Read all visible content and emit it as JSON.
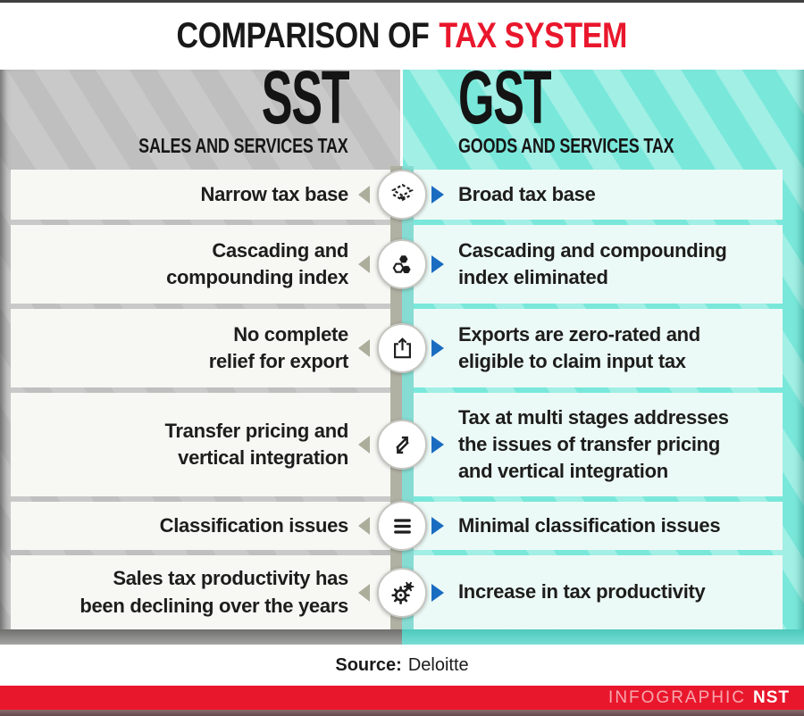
{
  "title": {
    "prefix": "COMPARISON OF",
    "highlight": "TAX SYSTEM"
  },
  "columns": {
    "left": {
      "abbr": "SST",
      "name": "SALES AND SERVICES TAX"
    },
    "right": {
      "abbr": "GST",
      "name": "GOODS AND SERVICES TAX"
    }
  },
  "rows": [
    {
      "icon": "layers-icon",
      "left": "Narrow tax base",
      "right": "Broad tax base"
    },
    {
      "icon": "hexagons-icon",
      "left": "Cascading and\ncompounding index",
      "right": "Cascading and compounding\nindex eliminated"
    },
    {
      "icon": "export-icon",
      "left": "No complete\nrelief for export",
      "right": "Exports are zero-rated and\neligible to claim input tax"
    },
    {
      "icon": "transfer-arrows-icon",
      "left": "Transfer pricing and\nvertical integration",
      "right": "Tax at multi stages addresses\nthe issues of transfer pricing\nand vertical integration"
    },
    {
      "icon": "list-lines-icon",
      "left": "Classification issues",
      "right": "Minimal classification issues"
    },
    {
      "icon": "gears-icon",
      "left": "Sales tax productivity has\nbeen declining over the years",
      "right": "Increase in tax productivity"
    }
  ],
  "source": {
    "label": "Source:",
    "value": "Deloitte"
  },
  "footer": {
    "brand_light": "INFOGRAPHIC",
    "brand_bold": "NST"
  },
  "icons": {
    "left-arrow-icon": "olive-gray triangle pointing left",
    "right-arrow-icon": "blue triangle pointing right",
    "layers-icon": "two stacked dashed diamond layers",
    "hexagons-icon": "cluster of three hexagons",
    "export-icon": "box with arrow pointing up out of it",
    "transfer-arrows-icon": "two opposing diagonal arrows",
    "list-lines-icon": "three horizontal lines",
    "gears-icon": "large outline gear with small filled gear"
  },
  "colors": {
    "accent_red": "#e9172c",
    "sst_gray": "#c9c9c9",
    "gst_cyan": "#79e8da",
    "arrow_blue": "#1a6cc1",
    "arrow_olive": "#adad9c",
    "text_dark": "#1d1d1b"
  }
}
